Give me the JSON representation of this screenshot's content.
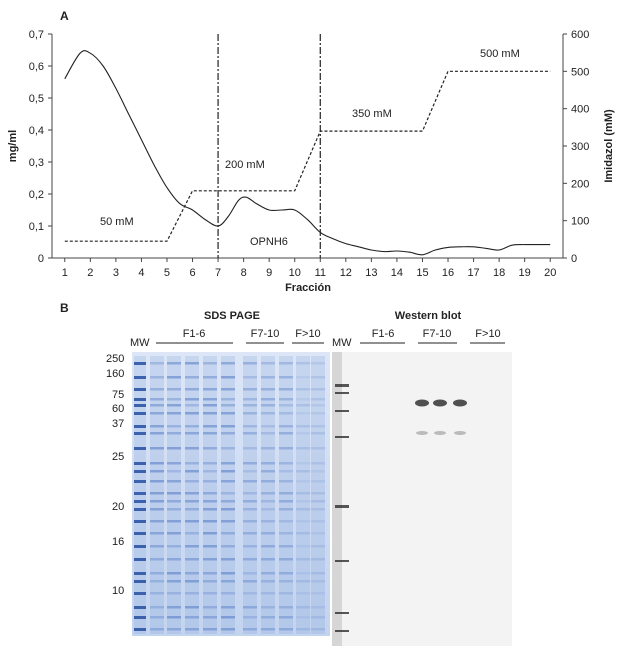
{
  "panel_a_label": "A",
  "panel_b_label": "B",
  "chart_data": {
    "type": "line",
    "x": [
      1,
      2,
      3,
      4,
      5,
      6,
      7,
      8,
      9,
      10,
      11,
      12,
      13,
      14,
      15,
      16,
      17,
      18,
      19,
      20
    ],
    "xlabel": "Fracción",
    "ylabel": "mg/ml",
    "y2label": "Imidazol (mM)",
    "xlim": [
      0.5,
      20.5
    ],
    "ylim": [
      0,
      0.7
    ],
    "y2lim": [
      0,
      600
    ],
    "yticks": [
      "0",
      "0,1",
      "0,2",
      "0,3",
      "0,4",
      "0,5",
      "0,6",
      "0,7"
    ],
    "y2ticks": [
      "0",
      "100",
      "200",
      "300",
      "400",
      "500",
      "600"
    ],
    "series": [
      {
        "name": "OPNH6",
        "axis": "left",
        "style": "solid",
        "curve": [
          [
            1,
            0.56
          ],
          [
            1.6,
            0.64
          ],
          [
            2,
            0.64
          ],
          [
            2.5,
            0.6
          ],
          [
            3,
            0.53
          ],
          [
            3.5,
            0.45
          ],
          [
            4,
            0.37
          ],
          [
            4.5,
            0.29
          ],
          [
            5,
            0.22
          ],
          [
            5.5,
            0.17
          ],
          [
            6,
            0.15
          ],
          [
            6.5,
            0.12
          ],
          [
            7,
            0.1
          ],
          [
            7.4,
            0.13
          ],
          [
            7.8,
            0.18
          ],
          [
            8.1,
            0.19
          ],
          [
            8.5,
            0.17
          ],
          [
            9,
            0.15
          ],
          [
            9.5,
            0.15
          ],
          [
            10,
            0.15
          ],
          [
            10.5,
            0.12
          ],
          [
            11,
            0.08
          ],
          [
            11.5,
            0.06
          ],
          [
            12,
            0.045
          ],
          [
            12.5,
            0.035
          ],
          [
            13,
            0.025
          ],
          [
            13.5,
            0.02
          ],
          [
            14,
            0.022
          ],
          [
            14.5,
            0.018
          ],
          [
            15,
            0.01
          ],
          [
            15.5,
            0.025
          ],
          [
            16,
            0.033
          ],
          [
            16.5,
            0.035
          ],
          [
            17,
            0.035
          ],
          [
            17.5,
            0.03
          ],
          [
            18,
            0.025
          ],
          [
            18.5,
            0.04
          ],
          [
            19,
            0.042
          ],
          [
            19.5,
            0.042
          ],
          [
            20,
            0.042
          ]
        ]
      },
      {
        "name": "Imidazol",
        "axis": "right",
        "style": "dashed",
        "curve": [
          [
            1,
            45
          ],
          [
            5,
            45
          ],
          [
            6,
            180
          ],
          [
            10,
            180
          ],
          [
            11,
            340
          ],
          [
            15,
            340
          ],
          [
            16,
            500
          ],
          [
            20,
            500
          ]
        ]
      }
    ],
    "vlines": [
      7,
      11
    ],
    "annotations": [
      "50 mM",
      "200 mM",
      "350 mM",
      "500 mM",
      "OPNH6"
    ]
  },
  "panel_b": {
    "sds_title": "SDS PAGE",
    "western_title": "Western blot",
    "mw_label": "MW",
    "groups": [
      "F1-6",
      "F7-10",
      "F>10"
    ],
    "markers": [
      "250",
      "160",
      "75",
      "60",
      "37",
      "25",
      "20",
      "16",
      "10"
    ]
  }
}
